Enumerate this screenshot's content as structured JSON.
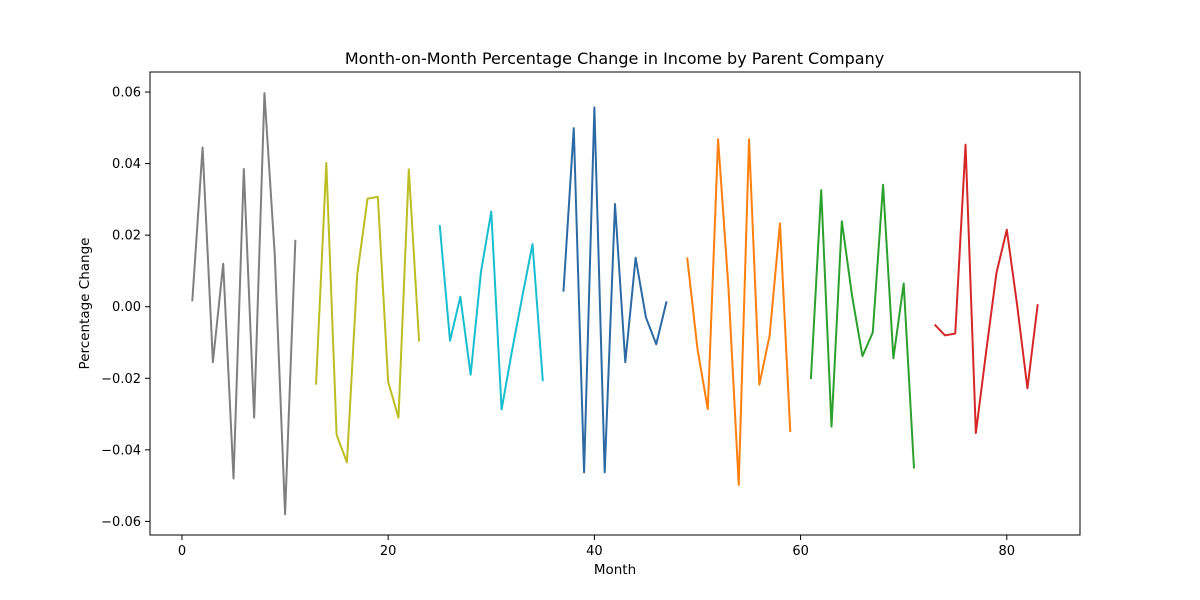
{
  "chart_data": {
    "type": "line",
    "title": "Month-on-Month Percentage Change in Income by Parent Company",
    "xlabel": "Month",
    "ylabel": "Percentage Change",
    "xlim": [
      -3.1,
      87.1
    ],
    "ylim": [
      -0.0638,
      0.0656
    ],
    "xticks": [
      0,
      20,
      40,
      60,
      80
    ],
    "yticks": [
      -0.06,
      -0.04,
      -0.02,
      0.0,
      0.02,
      0.04,
      0.06
    ],
    "xtick_labels": [
      "0",
      "20",
      "40",
      "60",
      "80"
    ],
    "ytick_labels": [
      "−0.06",
      "−0.04",
      "−0.02",
      "0.00",
      "0.02",
      "0.04",
      "0.06"
    ],
    "grid": false,
    "series": [
      {
        "color": "#7f7f7f",
        "x": [
          1,
          2,
          3,
          4,
          5,
          6,
          7,
          8,
          9,
          10,
          11
        ],
        "y": [
          0.0015,
          0.0445,
          -0.0155,
          0.012,
          -0.048,
          0.0385,
          -0.031,
          0.0597,
          0.0145,
          -0.058,
          0.0187
        ]
      },
      {
        "color": "#bcbd22",
        "x": [
          13,
          14,
          15,
          16,
          17,
          18,
          19,
          20,
          21,
          22,
          23
        ],
        "y": [
          -0.0218,
          0.0402,
          -0.0358,
          -0.0435,
          0.009,
          0.0302,
          0.0307,
          -0.021,
          -0.031,
          0.0384,
          -0.0097
        ]
      },
      {
        "color": "#17becf",
        "x": [
          25,
          26,
          27,
          28,
          29,
          30,
          31,
          32,
          33,
          34,
          35
        ],
        "y": [
          0.0228,
          -0.0095,
          0.0028,
          -0.019,
          0.0097,
          0.0266,
          -0.0287,
          -0.0125,
          0.0027,
          0.0175,
          -0.0208
        ]
      },
      {
        "color": "#2b6aa5",
        "x": [
          37,
          38,
          39,
          40,
          41,
          42,
          43,
          44,
          45,
          46,
          47
        ],
        "y": [
          0.0042,
          0.0499,
          -0.0463,
          0.0557,
          -0.0463,
          0.0287,
          -0.0155,
          0.0137,
          -0.003,
          -0.0105,
          0.0015
        ]
      },
      {
        "color": "#ff7f0e",
        "x": [
          49,
          50,
          51,
          52,
          53,
          54,
          55,
          56,
          57,
          58,
          59
        ],
        "y": [
          0.0138,
          -0.0118,
          -0.0286,
          0.0468,
          0.0055,
          -0.0498,
          0.0468,
          -0.0218,
          -0.008,
          0.0233,
          -0.035
        ]
      },
      {
        "color": "#2ca02c",
        "x": [
          61,
          62,
          63,
          64,
          65,
          66,
          67,
          68,
          69,
          70,
          71
        ],
        "y": [
          -0.0202,
          0.0326,
          -0.0335,
          0.0239,
          0.0029,
          -0.0138,
          -0.0072,
          0.0341,
          -0.0144,
          0.0065,
          -0.0452
        ]
      },
      {
        "color": "#d62728",
        "x": [
          73,
          74,
          75,
          76,
          77,
          78,
          79,
          80,
          81,
          82,
          83
        ],
        "y": [
          -0.005,
          -0.008,
          -0.0075,
          0.0453,
          -0.0353,
          -0.0125,
          0.0095,
          0.0215,
          0.0005,
          -0.0228,
          0.0007
        ]
      }
    ]
  }
}
